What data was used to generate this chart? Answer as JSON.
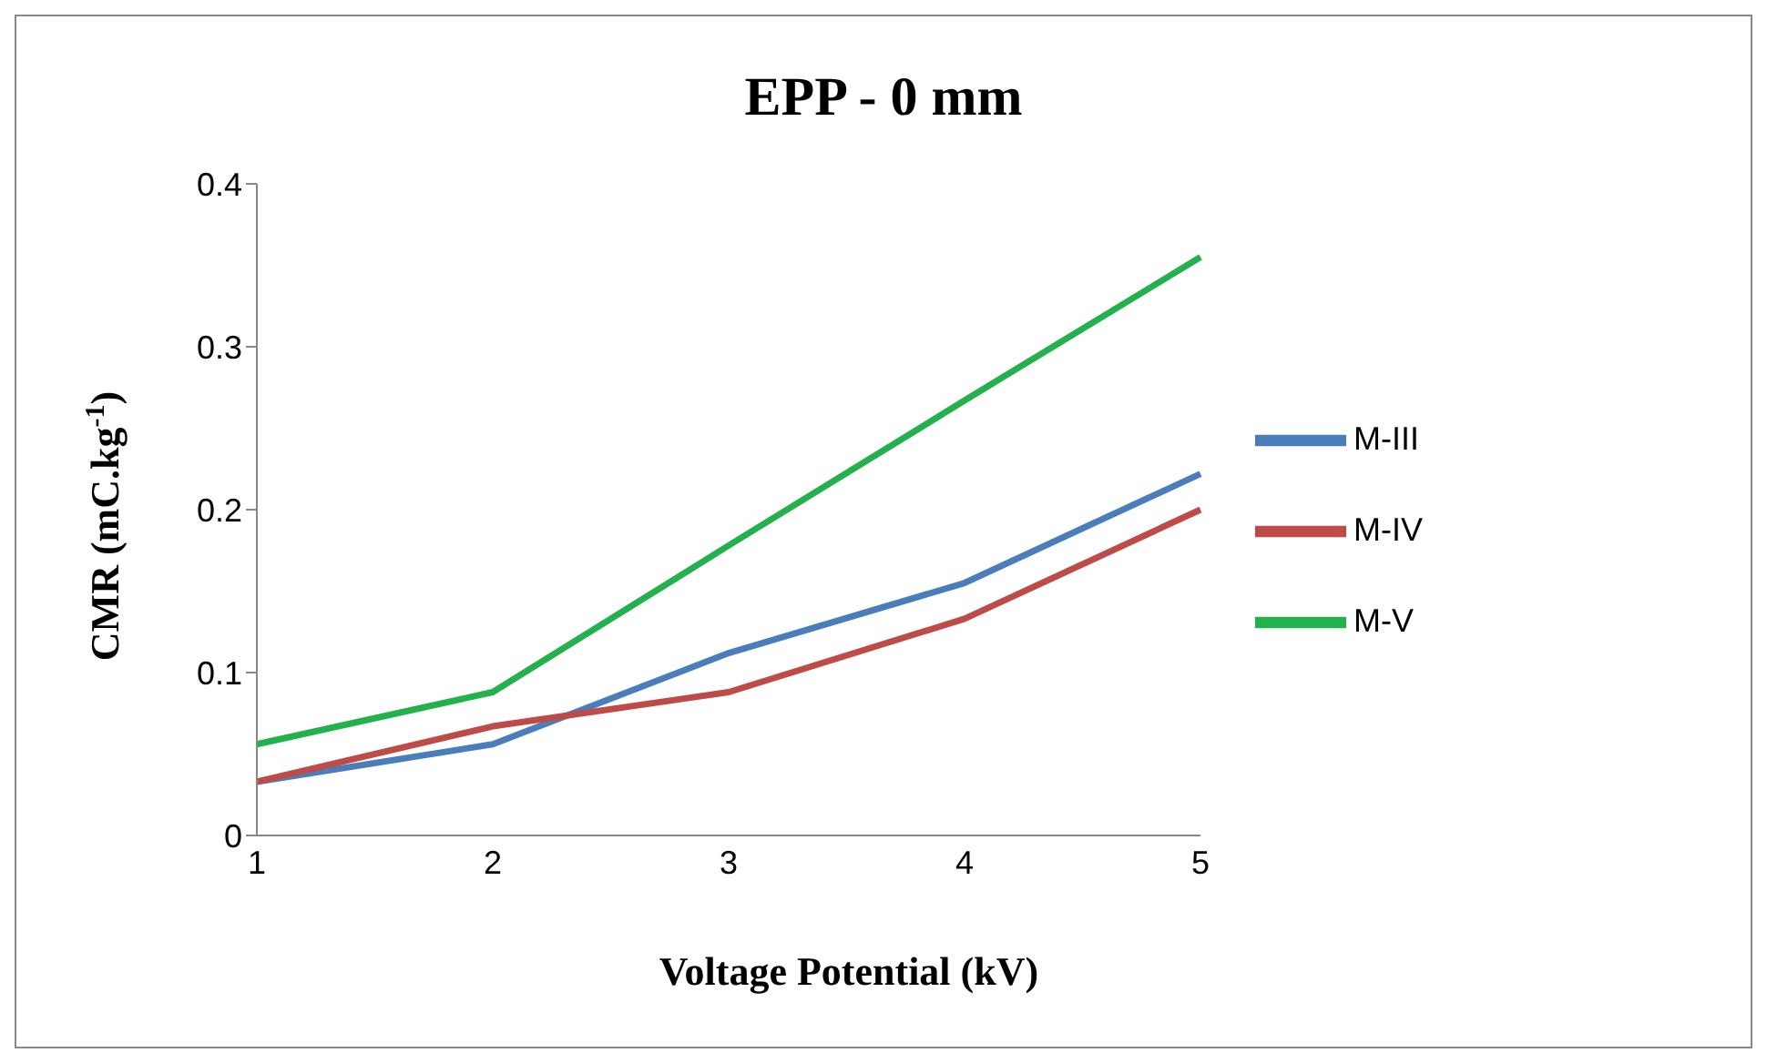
{
  "chart_data": {
    "type": "line",
    "title": "EPP - 0 mm",
    "xlabel": "Voltage Potential (kV)",
    "ylabel": "CMR (mC.kg$^{-1}$)",
    "categories": [
      "1",
      "2",
      "3",
      "4",
      "5"
    ],
    "series": [
      {
        "name": "M-III",
        "color": "#4a7ebb",
        "values": [
          0.033,
          0.056,
          0.112,
          0.155,
          0.222
        ]
      },
      {
        "name": "M-IV",
        "color": "#be4b48",
        "values": [
          0.033,
          0.067,
          0.088,
          0.133,
          0.2
        ]
      },
      {
        "name": "M-V",
        "color": "#23b14d",
        "values": [
          0.056,
          0.088,
          0.178,
          0.267,
          0.355
        ]
      }
    ],
    "ylim": [
      0,
      0.4
    ],
    "yticks": [
      0,
      0.1,
      0.2,
      0.3,
      0.4
    ],
    "grid": false,
    "legend": "right",
    "marker": "none",
    "line_style": "solid"
  }
}
